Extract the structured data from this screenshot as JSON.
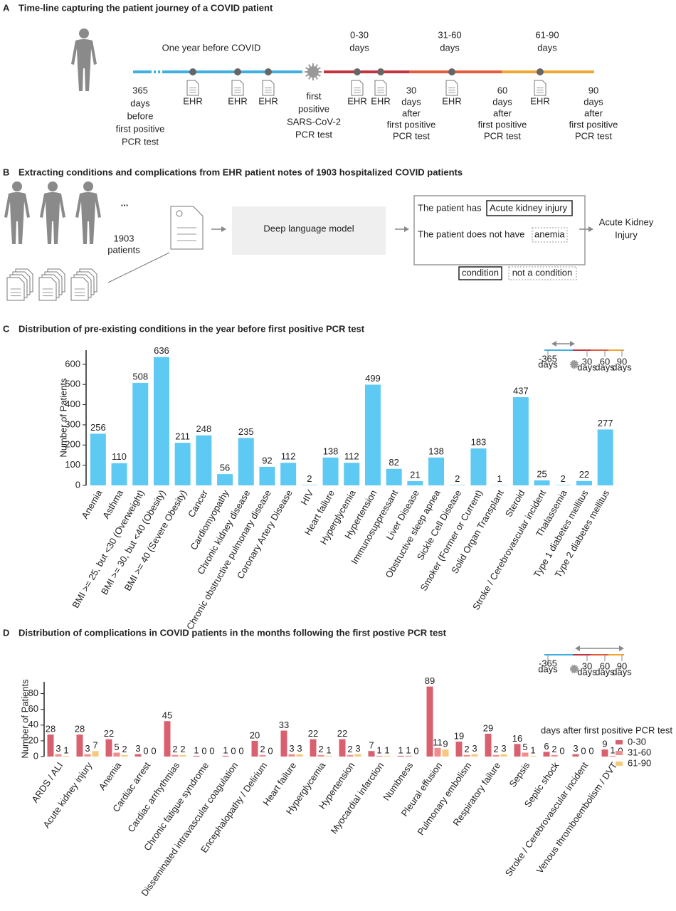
{
  "panel_a": {
    "label": "A",
    "title": "Time-line capturing the patient journey of a COVID patient",
    "period_labels": [
      "One year before COVID",
      [
        "0-30",
        "days"
      ],
      [
        "31-60",
        "days"
      ],
      [
        "61-90",
        "days"
      ]
    ],
    "start_label": [
      "365",
      "days",
      "before",
      "first positive",
      "PCR test"
    ],
    "event_label": [
      "first",
      "positive",
      "SARS-CoV-2",
      "PCR test"
    ],
    "end_labels": [
      [
        "30",
        "days",
        "after",
        "first positive",
        "PCR test"
      ],
      [
        "60",
        "days",
        "after",
        "first positive",
        "PCR test"
      ],
      [
        "90",
        "days",
        "after",
        "first positive",
        "PCR test"
      ]
    ],
    "ehr_labels": [
      "EHR",
      "EHR",
      "EHR",
      "EHR",
      "EHR",
      "EHR",
      "EHR"
    ]
  },
  "panel_b": {
    "label": "B",
    "title": "Extracting conditions and complications from EHR patient notes of 1903 hospitalized COVID patients",
    "ellipsis": "...",
    "patients": [
      "1903",
      "patients"
    ],
    "model": "Deep language model",
    "sentence_1": "The patient has",
    "entity_1": "Acute kidney injury",
    "sentence_2": "The patient does not have",
    "entity_2": "anemia",
    "output": [
      "Acute Kidney",
      "Injury"
    ],
    "legend": [
      "condition",
      "not a condition"
    ]
  },
  "chart_data": [
    {
      "type": "bar",
      "panel_label": "C",
      "title": "Distribution of pre-existing conditions in the year before first positive PCR test",
      "y_label": "Number of Patients",
      "color": "#5ec9f2",
      "categories": [
        "Anemia",
        "Asthma",
        "BMI >= 25, but <30 (Overweight)",
        "BMI >= 30, but <40 (Obesity)",
        "BMI >= 40 (Severe Obesity)",
        "Cancer",
        "Cardiomyopathy",
        "Chronic kidney disease",
        "Chronic obstructive pulmonary disease",
        "Coronary Artery Disease",
        "HIV",
        "Heart failure",
        "Hyperglycemia",
        "Hypertension",
        "Immunosuppressant",
        "Liver Disease",
        "Obstructive sleep apnea",
        "Sickle Cell Disease",
        "Smoker (Former or Current)",
        "Solid Organ Transplant",
        "Steroid",
        "Stroke / Cerebrovascular incident",
        "Thalassemia",
        "Type 1 diabetes mellitus",
        "Type 2 diabetes mellitus"
      ],
      "values": [
        256,
        110,
        508,
        636,
        211,
        248,
        56,
        235,
        92,
        112,
        2,
        138,
        112,
        499,
        82,
        21,
        138,
        2,
        183,
        1,
        437,
        25,
        2,
        22,
        277
      ],
      "ylim": [
        0,
        670
      ],
      "yticks": [
        0,
        100,
        200,
        300,
        400,
        500,
        600
      ],
      "inset_labels": [
        [
          "-365",
          "days"
        ],
        [
          "30",
          "days"
        ],
        [
          "60",
          "days"
        ],
        [
          "90",
          "days"
        ]
      ]
    },
    {
      "type": "grouped_bar",
      "panel_label": "D",
      "title": "Distribution of complications in COVID patients in the months following the first postive PCR test",
      "y_label": "Number of Patients",
      "legend_title": "days after first positive PCR test",
      "legend": "right",
      "categories": [
        "ARDS / ALI",
        "Acute kidney injury",
        "Anemia",
        "Cardiac arrest",
        "Cardiac arrhythmias",
        "Chronic fatigue syndrome",
        "Disseminated intravascular coagulation",
        "Encephalopathy / Delirium",
        "Heart failure",
        "Hyperglycemia",
        "Hypertension",
        "Myocardial infarction",
        "Numbness",
        "Pleural effusion",
        "Pulmonary embolism",
        "Respiratory failure",
        "Sepsis",
        "Septic shock",
        "Stroke / Cerebrovascular incident",
        "Venous thromboembolism / DVT"
      ],
      "series": [
        {
          "name": "0-30",
          "color": "#d9606f",
          "values": [
            28,
            28,
            22,
            3,
            45,
            1,
            1,
            20,
            33,
            22,
            22,
            7,
            1,
            89,
            19,
            29,
            16,
            6,
            3,
            9
          ]
        },
        {
          "name": "31-60",
          "color": "#f28b8b",
          "values": [
            3,
            3,
            5,
            0,
            2,
            0,
            0,
            2,
            3,
            2,
            2,
            1,
            1,
            11,
            2,
            2,
            5,
            2,
            0,
            1
          ]
        },
        {
          "name": "61-90",
          "color": "#f8c97c",
          "values": [
            1,
            7,
            2,
            0,
            2,
            0,
            0,
            0,
            3,
            1,
            3,
            1,
            0,
            9,
            3,
            3,
            1,
            0,
            0,
            0
          ]
        }
      ],
      "ylim": [
        0,
        95
      ],
      "yticks": [
        0,
        20,
        40,
        60,
        80
      ],
      "inset_labels": [
        [
          "-365",
          "days"
        ],
        [
          "30",
          "days"
        ],
        [
          "60",
          "days"
        ],
        [
          "90",
          "days"
        ]
      ]
    }
  ]
}
